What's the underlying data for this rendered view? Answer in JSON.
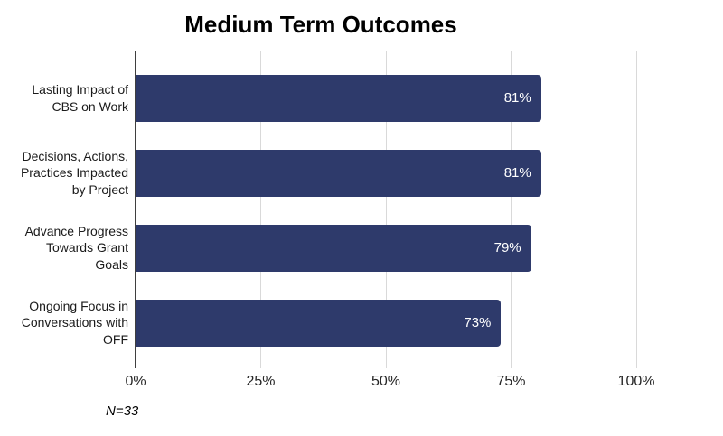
{
  "chart_data": {
    "type": "bar",
    "orientation": "horizontal",
    "title": "Medium Term Outcomes",
    "categories": [
      "Lasting Impact of CBS on Work",
      "Decisions, Actions, Practices Impacted by Project",
      "Advance Progress Towards Grant Goals",
      "Ongoing Focus in Conversations with OFF"
    ],
    "category_labels": [
      "Lasting Impact of\nCBS on Work",
      "Decisions, Actions,\nPractices Impacted\nby Project",
      "Advance Progress\nTowards Grant\nGoals",
      "Ongoing Focus in\nConversations with\nOFF"
    ],
    "values": [
      81,
      81,
      79,
      73
    ],
    "value_labels": [
      "81%",
      "81%",
      "79%",
      "73%"
    ],
    "x_ticks": [
      {
        "value": 0,
        "label": "0%"
      },
      {
        "value": 25,
        "label": "25%"
      },
      {
        "value": 50,
        "label": "50%"
      },
      {
        "value": 75,
        "label": "75%"
      },
      {
        "value": 100,
        "label": "100%"
      }
    ],
    "xlim": [
      0,
      100
    ],
    "xlabel": "",
    "ylabel": "",
    "note": "N=33",
    "grid": true,
    "legend": false,
    "colors": {
      "bar": "#2E3A6B",
      "value_label": "#FFFFFF",
      "gridline": "#D9D9D9",
      "axis_line": "#3F3F3F",
      "text": "#1A1A1A",
      "background": "#FFFFFF"
    }
  }
}
